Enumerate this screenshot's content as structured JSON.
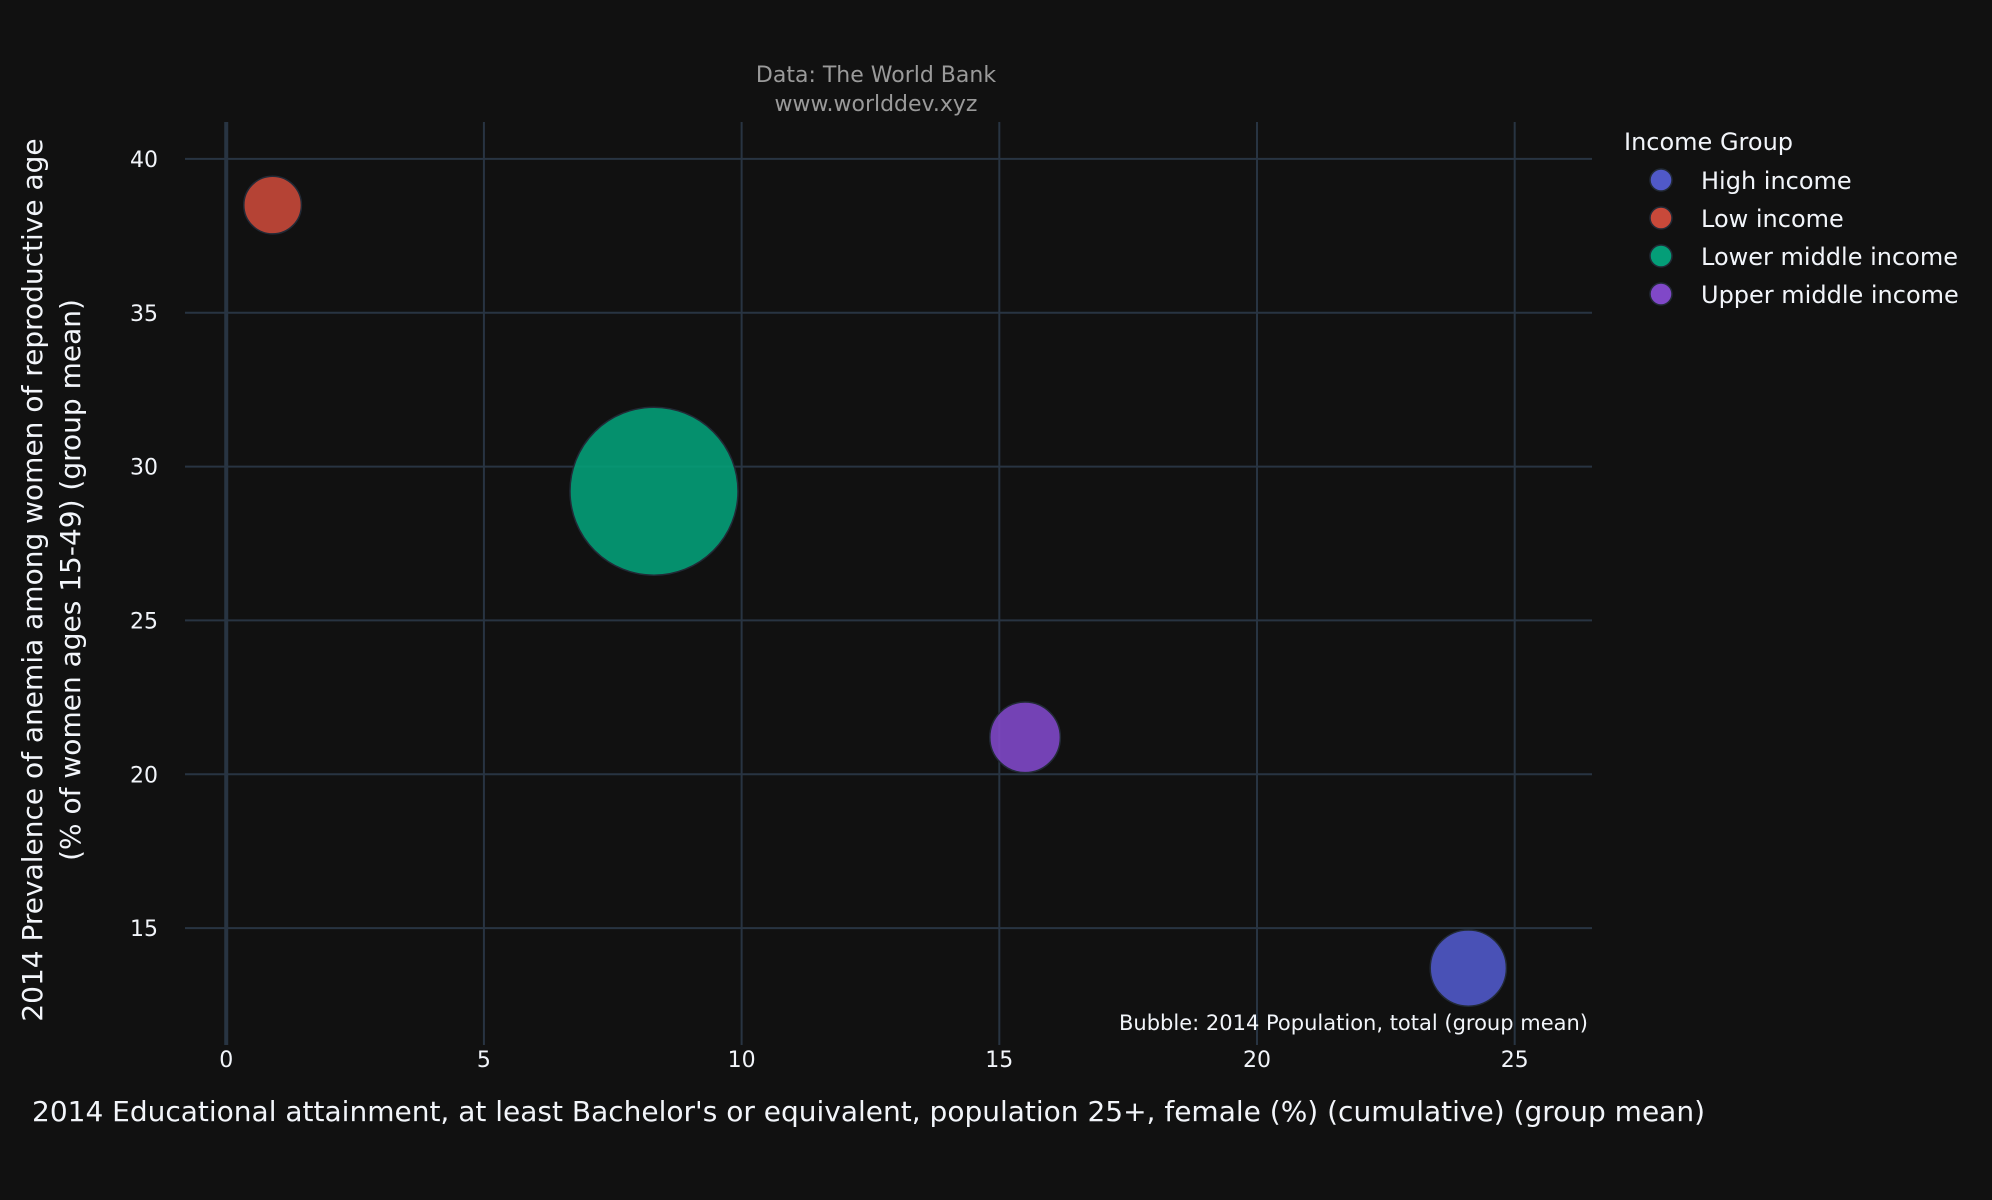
{
  "chart_data": {
    "type": "scatter",
    "subtitle_line1": "Data: The World Bank",
    "subtitle_line2": "www.worlddev.xyz",
    "xlabel": "2014 Educational attainment, at least Bachelor's or equivalent, population 25+, female (%) (cumulative) (group mean)",
    "ylabel_line1": "2014 Prevalence of anemia among women of reproductive age",
    "ylabel_line2": "(% of women ages 15-49) (group mean)",
    "bubble_note": "Bubble: 2014 Population, total (group mean)",
    "xlim": [
      -0.8,
      26.5
    ],
    "ylim": [
      11.2,
      41.2
    ],
    "xticks": [
      "0",
      "5",
      "10",
      "15",
      "20",
      "25"
    ],
    "xtick_values": [
      0,
      5,
      10,
      15,
      20,
      25
    ],
    "yticks": [
      "15",
      "20",
      "25",
      "30",
      "35",
      "40"
    ],
    "ytick_values": [
      15,
      20,
      25,
      30,
      35,
      40
    ],
    "legend_title": "Income Group",
    "series": [
      {
        "name": "High income",
        "color": "#5059c9",
        "x": 24.1,
        "y": 13.7,
        "population": 14
      },
      {
        "name": "Low income",
        "color": "#c8493a",
        "x": 0.9,
        "y": 38.5,
        "population": 8
      },
      {
        "name": "Lower middle income",
        "color": "#049e78",
        "x": 8.3,
        "y": 29.2,
        "population": 68
      },
      {
        "name": "Upper middle income",
        "color": "#8048c8",
        "x": 15.5,
        "y": 21.2,
        "population": 12
      }
    ]
  }
}
